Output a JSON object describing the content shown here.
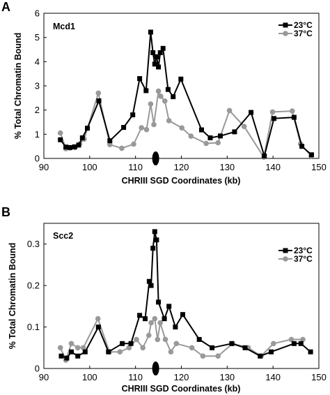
{
  "chart_data": [
    {
      "type": "line",
      "panel_label": "A",
      "title": "Mcd1",
      "xlabel": "CHRIII SGD Coordinates (kb)",
      "ylabel": "% Total Chromatin Bound",
      "xlim": [
        90,
        150
      ],
      "ylim": [
        0,
        6
      ],
      "xticks": [
        "90",
        "100",
        "110",
        "120",
        "130",
        "140",
        "150"
      ],
      "yticks": [
        "0",
        "1",
        "2",
        "3",
        "4",
        "5",
        "6"
      ],
      "grid": false,
      "legend_position": "top-right",
      "centromere_marker_x": 114.4,
      "series": [
        {
          "name": "23°C",
          "color": "#000000",
          "marker": "square",
          "x": [
            93.6,
            94.8,
            95.7,
            96.7,
            97.6,
            98.4,
            99.5,
            102.0,
            104.4,
            107.4,
            109.4,
            110.9,
            112.3,
            113.3,
            113.8,
            114.2,
            114.6,
            115.0,
            115.4,
            116.0,
            117.1,
            118.2,
            119.9,
            124.4,
            126.3,
            128.5,
            131.6,
            135.2,
            138.1,
            140.2,
            144.6,
            146.3,
            148.4
          ],
          "y": [
            0.77,
            0.47,
            0.45,
            0.48,
            0.55,
            0.85,
            1.25,
            2.38,
            0.73,
            1.28,
            1.8,
            3.3,
            2.8,
            5.22,
            4.37,
            3.9,
            4.2,
            3.78,
            4.37,
            4.55,
            2.85,
            2.55,
            3.28,
            1.18,
            0.85,
            0.93,
            1.1,
            1.9,
            0.1,
            1.65,
            1.7,
            0.5,
            0.15
          ]
        },
        {
          "name": "37°C",
          "color": "#999999",
          "marker": "circle",
          "x": [
            93.6,
            94.8,
            95.7,
            96.8,
            97.8,
            98.8,
            101.9,
            104.4,
            107.0,
            109.6,
            111.3,
            112.4,
            113.3,
            114.0,
            115.0,
            115.5,
            116.4,
            117.3,
            120.1,
            122.1,
            125.4,
            128.0,
            130.5,
            133.7,
            138.0,
            139.9,
            144.2,
            146.0,
            148.3
          ],
          "y": [
            1.05,
            0.4,
            0.43,
            0.45,
            0.6,
            0.8,
            2.7,
            0.57,
            0.42,
            0.59,
            1.27,
            1.19,
            2.25,
            1.4,
            2.78,
            2.57,
            2.37,
            1.56,
            1.26,
            0.92,
            0.62,
            0.65,
            1.98,
            1.32,
            0.05,
            1.92,
            1.96,
            0.6,
            0.1
          ]
        }
      ]
    },
    {
      "type": "line",
      "panel_label": "B",
      "title": "Scc2",
      "xlabel": "CHRIII SGD Coordinates (kb)",
      "ylabel": "% Total Chromatin Bound",
      "xlim": [
        90,
        150
      ],
      "ylim": [
        0,
        0.35
      ],
      "xticks": [
        "90",
        "100",
        "110",
        "120",
        "130",
        "140",
        "150"
      ],
      "yticks": [
        "0",
        "0.1",
        "0.2",
        "0.3"
      ],
      "grid": false,
      "legend_position": "top-right",
      "centromere_marker_x": 114.4,
      "series": [
        {
          "name": "23°C",
          "color": "#000000",
          "marker": "square",
          "x": [
            93.8,
            95.0,
            96.0,
            97.4,
            99.0,
            101.9,
            104.1,
            107.1,
            109.0,
            110.9,
            112.1,
            113.0,
            113.4,
            113.8,
            114.2,
            114.6,
            115.0,
            116.3,
            117.3,
            118.7,
            120.3,
            123.9,
            126.7,
            131.0,
            133.9,
            137.2,
            139.6,
            144.6,
            146.1,
            148.2
          ],
          "y": [
            0.03,
            0.025,
            0.04,
            0.03,
            0.04,
            0.1,
            0.04,
            0.06,
            0.06,
            0.128,
            0.12,
            0.21,
            0.2,
            0.29,
            0.33,
            0.31,
            0.16,
            0.12,
            0.15,
            0.1,
            0.13,
            0.07,
            0.05,
            0.06,
            0.05,
            0.03,
            0.04,
            0.06,
            0.06,
            0.04
          ]
        },
        {
          "name": "37°C",
          "color": "#999999",
          "marker": "circle",
          "x": [
            93.6,
            94.8,
            96.0,
            97.4,
            98.6,
            101.8,
            104.3,
            106.6,
            108.6,
            110.2,
            111.6,
            112.9,
            113.4,
            114.2,
            114.8,
            115.4,
            116.5,
            117.7,
            118.9,
            122.3,
            124.7,
            128.0,
            131.2,
            134.6,
            137.4,
            140.1,
            144.0,
            146.5
          ],
          "y": [
            0.05,
            0.02,
            0.06,
            0.05,
            0.05,
            0.12,
            0.04,
            0.04,
            0.05,
            0.07,
            0.05,
            0.08,
            0.11,
            0.12,
            0.07,
            0.11,
            0.07,
            0.04,
            0.06,
            0.05,
            0.03,
            0.03,
            0.06,
            0.05,
            0.03,
            0.06,
            0.07,
            0.07
          ]
        }
      ]
    }
  ]
}
